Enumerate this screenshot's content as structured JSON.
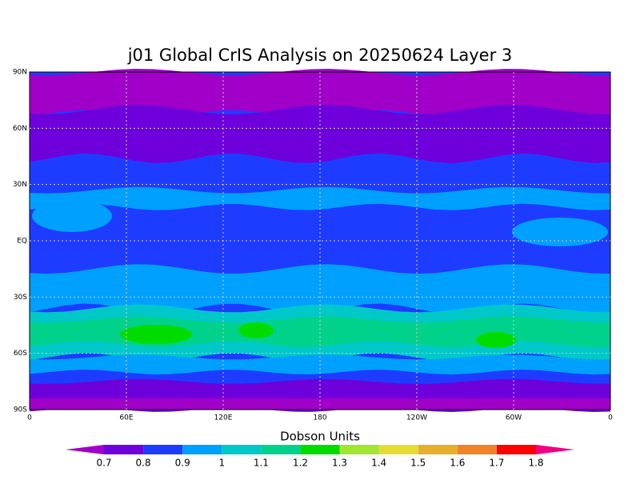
{
  "title": "j01 Global CrIS Analysis on 20250624 Layer 3",
  "lon_ticks": [
    "0",
    "60E",
    "120E",
    "180",
    "120W",
    "60W",
    "0"
  ],
  "lat_ticks": [
    "90N",
    "60N",
    "30N",
    "EQ",
    "30S",
    "60S",
    "90S"
  ],
  "colorbar": {
    "label": "Dobson Units",
    "levels": [
      0.7,
      0.8,
      0.9,
      1,
      1.1,
      1.2,
      1.3,
      1.4,
      1.5,
      1.6,
      1.7,
      1.8
    ],
    "colors": [
      "#a000c8",
      "#6e00dc",
      "#1e3cff",
      "#00a0ff",
      "#00c8c8",
      "#00d28c",
      "#00dc00",
      "#a0e632",
      "#e6dc32",
      "#e6af2d",
      "#f08228",
      "#fa0000",
      "#f00082"
    ]
  }
}
